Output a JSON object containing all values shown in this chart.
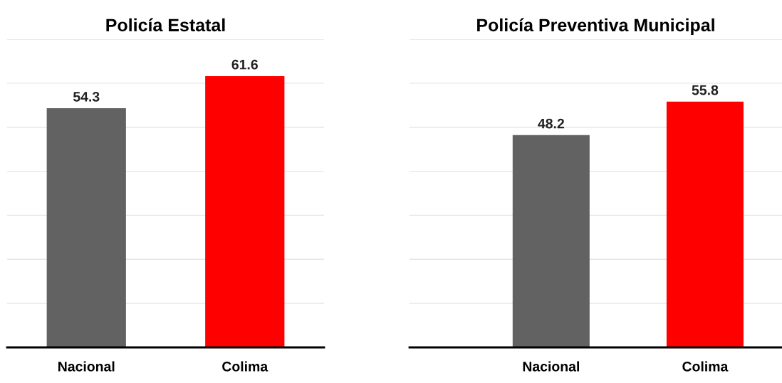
{
  "chart_data": [
    {
      "type": "bar",
      "title": "Policía Estatal",
      "categories": [
        "Nacional",
        "Colima"
      ],
      "values": [
        54.3,
        61.6
      ],
      "colors": [
        "#626262",
        "#ff0000"
      ],
      "data_labels": true,
      "ylim": [
        0,
        70
      ],
      "yticks": [
        {
          "value": 0,
          "label": null
        },
        {
          "value": 10,
          "label": null
        },
        {
          "value": 20,
          "label": null
        },
        {
          "value": 30,
          "label": null
        },
        {
          "value": 40,
          "label": null
        },
        {
          "value": 50,
          "label": null
        },
        {
          "value": 60,
          "label": null
        },
        {
          "value": 70,
          "label": null
        }
      ],
      "tick_labels": "x",
      "grid": "y"
    },
    {
      "type": "bar",
      "title": "Policía Preventiva Municipal",
      "categories": [
        "Nacional",
        "Colima"
      ],
      "values": [
        48.2,
        55.8
      ],
      "colors": [
        "#626262",
        "#ff0000"
      ],
      "data_labels": true,
      "ylim": [
        0,
        70
      ],
      "yticks": [
        {
          "value": 0,
          "label": null
        },
        {
          "value": 10,
          "label": null
        },
        {
          "value": 20,
          "label": null
        },
        {
          "value": 30,
          "label": null
        },
        {
          "value": 40,
          "label": null
        },
        {
          "value": 50,
          "label": null
        },
        {
          "value": 60,
          "label": null
        },
        {
          "value": 70,
          "label": null
        }
      ],
      "tick_labels": "x",
      "grid": "y"
    }
  ]
}
